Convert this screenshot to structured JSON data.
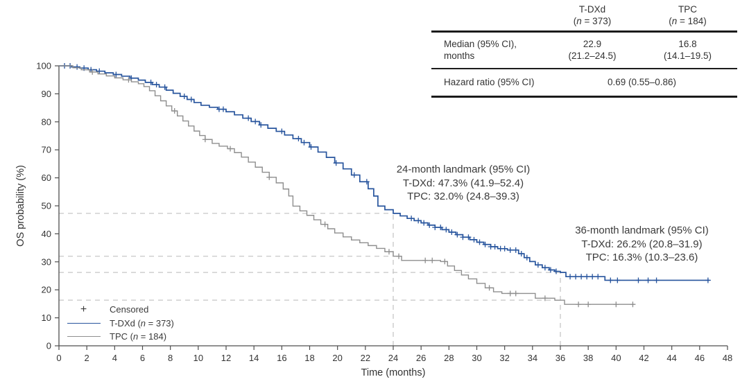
{
  "figure": {
    "background": "#ffffff",
    "text_color": "#333333"
  },
  "stats_table": {
    "columns": [
      {
        "title": "T-DXd",
        "n_pre": "(",
        "n_italic": "n",
        "n_post": " = 373)"
      },
      {
        "title": "TPC",
        "n_pre": "(",
        "n_italic": "n",
        "n_post": " = 184)"
      }
    ],
    "median_row": {
      "label_line1": "Median (95% CI),",
      "label_line2": "months",
      "values": [
        {
          "line1": "22.9",
          "line2": "(21.2–24.5)"
        },
        {
          "line1": "16.8",
          "line2": "(14.1–19.5)"
        }
      ]
    },
    "hazard_row": {
      "label": "Hazard ratio (95% CI)",
      "value": "0.69 (0.55–0.86)"
    }
  },
  "annotations": {
    "landmark24": {
      "line1": "24-month landmark (95% CI)",
      "line2": "T-DXd: 47.3% (41.9–52.4)",
      "line3": "TPC: 32.0% (24.8–39.3)"
    },
    "landmark36": {
      "line1": "36-month landmark (95% CI)",
      "line2": "T-DXd: 26.2% (20.8–31.9)",
      "line3": "TPC: 16.3% (10.3–23.6)"
    }
  },
  "legend": {
    "items": [
      {
        "marker": "plus",
        "glyph": "+",
        "pre": "Censored",
        "n": "",
        "post": ""
      },
      {
        "marker": "line",
        "color": "#27549d",
        "pre": "T-DXd (",
        "n": "n",
        "post": " = 373)"
      },
      {
        "marker": "line",
        "color": "#8e8e8e",
        "pre": "TPC (",
        "n": "n",
        "post": " = 184)"
      }
    ]
  },
  "chart_data": {
    "type": "line",
    "subtype": "kaplan_meier_step",
    "title": "",
    "xlabel": "Time (months)",
    "ylabel": "OS probability (%)",
    "xlim": [
      0,
      48
    ],
    "ylim": [
      0,
      100
    ],
    "x_ticks": [
      0,
      2,
      4,
      6,
      8,
      10,
      12,
      14,
      16,
      18,
      20,
      22,
      24,
      26,
      28,
      30,
      32,
      34,
      36,
      38,
      40,
      42,
      44,
      46,
      48
    ],
    "y_ticks": [
      0,
      10,
      20,
      30,
      40,
      50,
      60,
      70,
      80,
      90,
      100
    ],
    "grid": false,
    "legend_position": "lower left",
    "axis_color": "#4d4d4d",
    "dash_color": "#c6c6c6",
    "medians_months": {
      "t_dxd": 22.9,
      "tpc": 16.8
    },
    "hazard_ratio": "0.69 (0.55–0.86)",
    "landmarks_pct": {
      "24_month": {
        "t_dxd": 47.3,
        "tpc": 32.0
      },
      "36_month": {
        "t_dxd": 26.2,
        "tpc": 16.3
      }
    },
    "ref_lines": [
      {
        "orient": "h",
        "value": 47.3,
        "from": 0,
        "to": 24
      },
      {
        "orient": "h",
        "value": 32.0,
        "from": 0,
        "to": 24
      },
      {
        "orient": "h",
        "value": 26.2,
        "from": 0,
        "to": 36
      },
      {
        "orient": "h",
        "value": 16.3,
        "from": 0,
        "to": 36
      },
      {
        "orient": "v",
        "value": 24,
        "from": 0,
        "to": 47.3
      },
      {
        "orient": "v",
        "value": 36,
        "from": 0,
        "to": 26.2
      }
    ],
    "series": [
      {
        "id": "t-dxd",
        "name": "T-DXd (n = 373)",
        "color": "#27549d",
        "line_width": 1.7,
        "steps": [
          [
            0,
            100
          ],
          [
            0.9,
            99.6
          ],
          [
            1.5,
            99.2
          ],
          [
            2.1,
            98.6
          ],
          [
            2.7,
            98.1
          ],
          [
            3.3,
            97.5
          ],
          [
            3.9,
            96.9
          ],
          [
            4.5,
            96.3
          ],
          [
            5.1,
            95.6
          ],
          [
            5.7,
            94.9
          ],
          [
            6.2,
            94.1
          ],
          [
            6.7,
            93.3
          ],
          [
            7.2,
            92.4
          ],
          [
            7.7,
            91.3
          ],
          [
            8.2,
            90.2
          ],
          [
            8.7,
            89.1
          ],
          [
            9.2,
            88
          ],
          [
            9.7,
            86.9
          ],
          [
            10.2,
            85.9
          ],
          [
            10.8,
            85.2
          ],
          [
            11.4,
            84.5
          ],
          [
            12,
            83.6
          ],
          [
            12.6,
            82.5
          ],
          [
            13.2,
            81.3
          ],
          [
            13.8,
            80.1
          ],
          [
            14.4,
            78.9
          ],
          [
            15,
            77.7
          ],
          [
            15.6,
            76.6
          ],
          [
            16.2,
            75.3
          ],
          [
            16.8,
            74
          ],
          [
            17.4,
            72.6
          ],
          [
            18,
            71
          ],
          [
            18.6,
            69.2
          ],
          [
            19.2,
            67.3
          ],
          [
            19.8,
            65.3
          ],
          [
            20.4,
            63.2
          ],
          [
            21,
            61
          ],
          [
            21.6,
            58.6
          ],
          [
            22.2,
            56.1
          ],
          [
            22.6,
            53.5
          ],
          [
            22.9,
            49.9
          ],
          [
            23.4,
            48.6
          ],
          [
            24,
            47.3
          ],
          [
            24.5,
            46.4
          ],
          [
            25,
            45.5
          ],
          [
            25.5,
            44.7
          ],
          [
            26,
            43.9
          ],
          [
            26.5,
            43.1
          ],
          [
            27,
            42.3
          ],
          [
            27.5,
            41.5
          ],
          [
            28,
            40.6
          ],
          [
            28.5,
            39.7
          ],
          [
            29,
            38.8
          ],
          [
            29.5,
            37.9
          ],
          [
            30,
            37
          ],
          [
            30.5,
            36.2
          ],
          [
            31,
            35.4
          ],
          [
            31.5,
            34.7
          ],
          [
            32.2,
            34.2
          ],
          [
            33,
            32.9
          ],
          [
            33.4,
            31.5
          ],
          [
            33.8,
            30.1
          ],
          [
            34.2,
            28.9
          ],
          [
            34.7,
            27.9
          ],
          [
            35.2,
            27.1
          ],
          [
            35.6,
            26.6
          ],
          [
            36,
            26.2
          ],
          [
            36.4,
            24.7
          ],
          [
            39.2,
            23.4
          ],
          [
            46.7,
            23.4
          ]
        ],
        "censor_times": [
          0.4,
          0.8,
          1.3,
          1.8,
          2.3,
          2.9,
          4.1,
          5.2,
          6.6,
          7,
          7.6,
          9,
          9.5,
          11.5,
          11.8,
          13.6,
          14.1,
          14.5,
          16,
          17.2,
          17.6,
          18.1,
          19.9,
          21.2,
          22.1,
          25.3,
          25.8,
          26.2,
          26.6,
          27,
          27.4,
          27.8,
          28.2,
          28.6,
          29,
          29.4,
          29.8,
          30.2,
          30.6,
          31,
          31.3,
          31.7,
          32,
          32.4,
          32.8,
          33.2,
          33.6,
          34.4,
          34.9,
          35.3,
          35.7,
          36.7,
          37.1,
          37.5,
          37.9,
          38.3,
          38.7,
          39.6,
          40.1,
          41.6,
          42.3,
          42.9,
          46.6
        ]
      },
      {
        "id": "tpc",
        "name": "TPC (n = 184)",
        "color": "#8e8e8e",
        "line_width": 1.4,
        "steps": [
          [
            0,
            100
          ],
          [
            1,
            99.3
          ],
          [
            1.6,
            98.6
          ],
          [
            2.2,
            97.8
          ],
          [
            2.8,
            97.1
          ],
          [
            3.4,
            96.4
          ],
          [
            4,
            95.7
          ],
          [
            4.6,
            95
          ],
          [
            5.2,
            94.3
          ],
          [
            5.7,
            93.6
          ],
          [
            6.1,
            92.6
          ],
          [
            6.5,
            91.1
          ],
          [
            6.9,
            89.3
          ],
          [
            7.3,
            87.5
          ],
          [
            7.7,
            85.7
          ],
          [
            8.1,
            83.9
          ],
          [
            8.5,
            82.1
          ],
          [
            8.9,
            80.3
          ],
          [
            9.3,
            78.5
          ],
          [
            9.7,
            76.7
          ],
          [
            10.1,
            75.1
          ],
          [
            10.5,
            73.7
          ],
          [
            11,
            72.3
          ],
          [
            11.5,
            71.3
          ],
          [
            12.1,
            70.4
          ],
          [
            12.6,
            69
          ],
          [
            13.1,
            67.4
          ],
          [
            13.6,
            65.6
          ],
          [
            14.1,
            63.8
          ],
          [
            14.6,
            62
          ],
          [
            15.1,
            60.2
          ],
          [
            15.6,
            58.2
          ],
          [
            16.1,
            56
          ],
          [
            16.5,
            53.5
          ],
          [
            16.8,
            49.9
          ],
          [
            17.3,
            48.2
          ],
          [
            17.8,
            46.6
          ],
          [
            18.3,
            45
          ],
          [
            18.8,
            43.4
          ],
          [
            19.3,
            41.8
          ],
          [
            19.8,
            40.3
          ],
          [
            20.4,
            38.9
          ],
          [
            21,
            37.8
          ],
          [
            21.6,
            36.8
          ],
          [
            22.2,
            35.8
          ],
          [
            22.8,
            34.8
          ],
          [
            23.4,
            33.6
          ],
          [
            24,
            32
          ],
          [
            24.6,
            30.5
          ],
          [
            27.4,
            30.1
          ],
          [
            27.9,
            28.5
          ],
          [
            28.4,
            26.9
          ],
          [
            28.9,
            25.3
          ],
          [
            29.4,
            23.9
          ],
          [
            30,
            22.3
          ],
          [
            30.6,
            20.7
          ],
          [
            31.2,
            19.3
          ],
          [
            31.8,
            18.7
          ],
          [
            34.2,
            17
          ],
          [
            35.6,
            16.3
          ],
          [
            36.3,
            14.8
          ],
          [
            41.3,
            14.8
          ]
        ],
        "censor_times": [
          2.4,
          5,
          8.3,
          10.5,
          12.3,
          15.1,
          19.1,
          23.7,
          24.4,
          26.3,
          26.8,
          27.7,
          30.9,
          32.4,
          32.8,
          34.9,
          37.3,
          38,
          40,
          41.2
        ]
      }
    ]
  }
}
